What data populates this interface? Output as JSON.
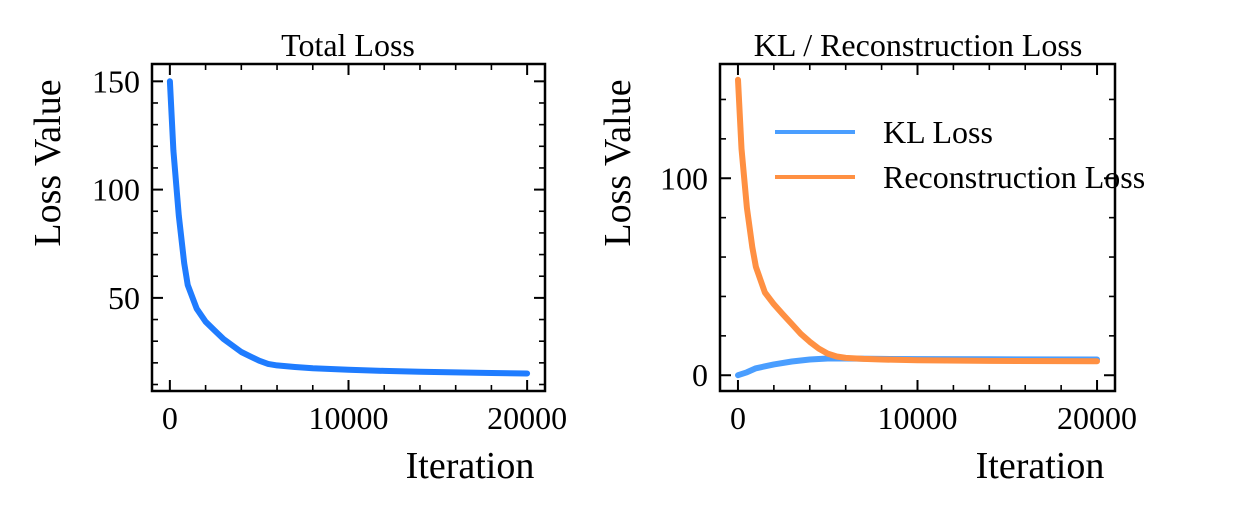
{
  "chart_data": [
    {
      "type": "line",
      "title": "Total Loss",
      "xlabel": "Iteration",
      "ylabel": "Loss Value",
      "xlim": [
        -1000,
        21000
      ],
      "ylim": [
        7,
        158
      ],
      "xticks": [
        0,
        10000,
        20000
      ],
      "xtick_labels": [
        "0",
        "10000",
        "20000"
      ],
      "yticks": [
        50,
        100,
        150
      ],
      "ytick_labels": [
        "50",
        "100",
        "150"
      ],
      "legend": "none",
      "series": [
        {
          "color": "#1f7cff",
          "x": [
            0,
            200,
            500,
            800,
            1000,
            1500,
            2000,
            2500,
            3000,
            3500,
            4000,
            4500,
            5000,
            5500,
            6000,
            7000,
            8000,
            10000,
            12000,
            14000,
            16000,
            18000,
            20000
          ],
          "y": [
            150,
            118,
            88,
            66,
            56,
            45,
            39,
            35,
            31,
            28,
            25,
            23,
            21,
            19.5,
            18.8,
            18.1,
            17.5,
            16.8,
            16.3,
            15.9,
            15.6,
            15.3,
            15.1
          ]
        }
      ]
    },
    {
      "type": "line",
      "title": "KL / Reconstruction Loss",
      "xlabel": "Iteration",
      "ylabel": "Loss Value",
      "xlim": [
        -1000,
        21000
      ],
      "ylim": [
        -8,
        158
      ],
      "xticks": [
        0,
        10000,
        20000
      ],
      "xtick_labels": [
        "0",
        "10000",
        "20000"
      ],
      "yticks": [
        0,
        100
      ],
      "ytick_labels": [
        "0",
        "100"
      ],
      "legend": "top-right",
      "series": [
        {
          "name": "KL Loss",
          "color": "#4a9eff",
          "x": [
            0,
            500,
            1000,
            2000,
            3000,
            4000,
            5000,
            6000,
            8000,
            10000,
            14000,
            20000
          ],
          "y": [
            0,
            1.5,
            3.5,
            5.5,
            7,
            8,
            8.5,
            8.5,
            8.3,
            8.2,
            8.1,
            8
          ]
        },
        {
          "name": "Reconstruction Loss",
          "color": "#ff9042",
          "x": [
            0,
            200,
            500,
            800,
            1000,
            1500,
            2000,
            2500,
            3000,
            3500,
            4000,
            4500,
            5000,
            5500,
            6000,
            7000,
            8000,
            10000,
            14000,
            20000
          ],
          "y": [
            150,
            115,
            85,
            65,
            55,
            42,
            36,
            31,
            26,
            21,
            17,
            13.5,
            11,
            9.5,
            8.8,
            8.3,
            8,
            7.6,
            7.3,
            7.1
          ]
        }
      ]
    }
  ]
}
